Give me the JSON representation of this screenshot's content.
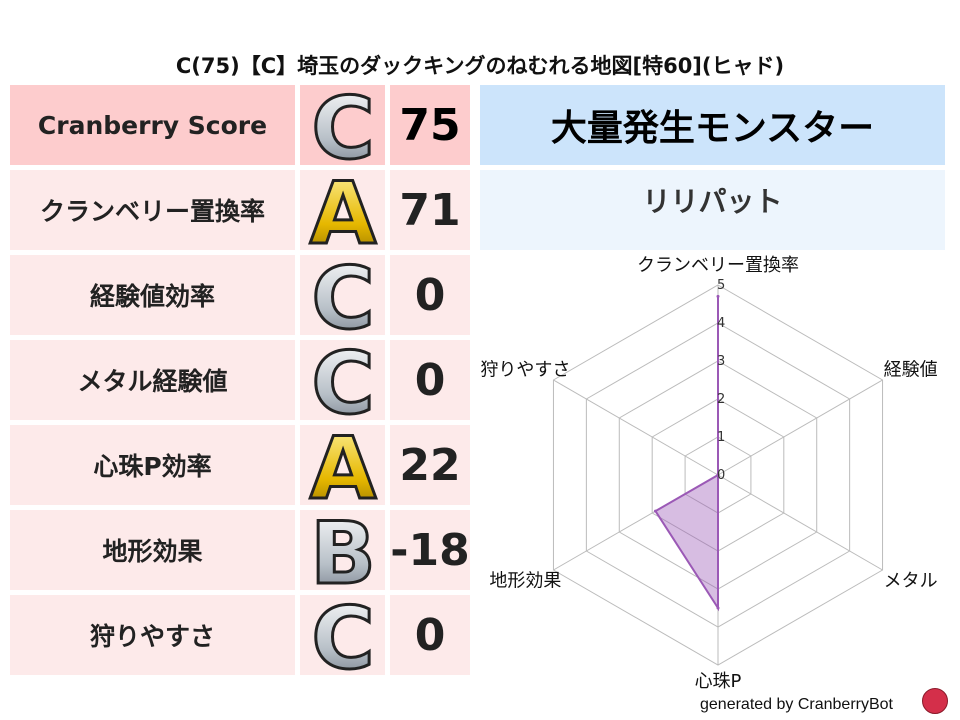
{
  "title": "C(75)【C】埼玉のダックキングのねむれる地図[特60](ヒャド)",
  "rows": [
    {
      "label": "Cranberry Score",
      "grade": "C",
      "score": "75"
    },
    {
      "label": "クランベリー置換率",
      "grade": "A",
      "score": "71"
    },
    {
      "label": "経験値効率",
      "grade": "C",
      "score": "0"
    },
    {
      "label": "メタル経験値",
      "grade": "C",
      "score": "0"
    },
    {
      "label": "心珠P効率",
      "grade": "A",
      "score": "22"
    },
    {
      "label": "地形効果",
      "grade": "B",
      "score": "-18"
    },
    {
      "label": "狩りやすさ",
      "grade": "C",
      "score": "0"
    }
  ],
  "grade_colors": {
    "A": [
      "#fff3a0",
      "#e6b800",
      "#8a6a00"
    ],
    "B": [
      "#ffffff",
      "#b8c0c8",
      "#6a7480"
    ],
    "C": [
      "#ffffff",
      "#b8c0c8",
      "#6a7480"
    ]
  },
  "right": {
    "header": "大量発生モンスター",
    "monster": "リリパット"
  },
  "chart_data": {
    "type": "radar",
    "categories": [
      "クランベリー置換率",
      "経験値",
      "メタル",
      "心珠P",
      "地形効果",
      "狩りやすさ"
    ],
    "values": [
      4.7,
      0,
      0,
      3.5,
      1.9,
      0
    ],
    "range": [
      0,
      5
    ],
    "ticks": [
      "0",
      "1",
      "2",
      "3",
      "4",
      "5"
    ],
    "color": "#9b59b6"
  },
  "footer": {
    "text": "generated by CranberryBot",
    "logo": "cranberry-bot-logo"
  }
}
